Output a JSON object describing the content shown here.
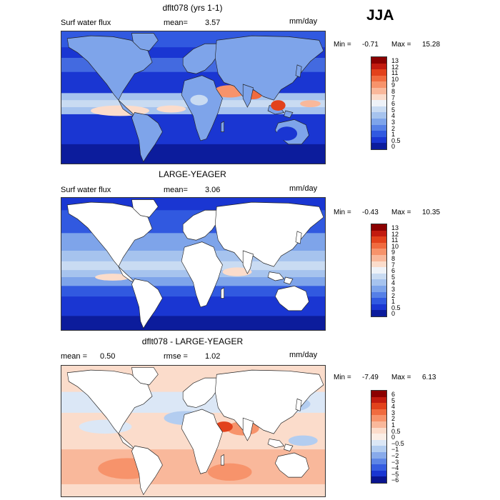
{
  "season": "JJA",
  "scale_levels_pos": [
    "13",
    "12",
    "11",
    "10",
    "9",
    "8",
    "7",
    "6",
    "5",
    "4",
    "3",
    "2",
    "1",
    "0.5",
    "0"
  ],
  "scale_levels_diff": [
    "6",
    "5",
    "4",
    "3",
    "2",
    "1",
    "0.5",
    "0",
    "-0.5",
    "-1",
    "-2",
    "-3",
    "-4",
    "-5",
    "-6"
  ],
  "colors_pos": [
    "#8b0000",
    "#c21b0f",
    "#e2421c",
    "#f06b3f",
    "#f7936b",
    "#f9b89b",
    "#fbdccb",
    "#eef2f8",
    "#c9dbf2",
    "#a6c3ee",
    "#7ea4ea",
    "#5680e6",
    "#3159e0",
    "#1a36d2",
    "#0c1c9c"
  ],
  "colors_diff": [
    "#8b0000",
    "#c21b0f",
    "#e2421c",
    "#f06b3f",
    "#f7936b",
    "#f9b89b",
    "#fbdccb",
    "#fbeee6",
    "#dbe7f6",
    "#b3cdf0",
    "#88aaea",
    "#5e86e6",
    "#365de0",
    "#1a36d2",
    "#0a1590"
  ],
  "panels": [
    {
      "title": "dflt078 (yrs 1-1)",
      "field": "Surf water flux",
      "stat1_label": "mean=",
      "stat1_value": "3.57",
      "units": "mm/day",
      "min_text": "Min =",
      "min_value": "-0.71",
      "max_text": "Max =",
      "max_value": "15.28"
    },
    {
      "title": "LARGE-YEAGER",
      "field": "Surf water flux",
      "stat1_label": "mean=",
      "stat1_value": "3.06",
      "units": "mm/day",
      "min_text": "Min =",
      "min_value": "-0.43",
      "max_text": "Max =",
      "max_value": "10.35"
    },
    {
      "title": "dflt078 - LARGE-YEAGER",
      "stat1_label": "mean =",
      "stat1_value": "0.50",
      "stat2_label": "rmse =",
      "stat2_value": "1.02",
      "units": "mm/day",
      "min_text": "Min =",
      "min_value": "-7.49",
      "max_text": "Max =",
      "max_value": "6.13"
    }
  ]
}
